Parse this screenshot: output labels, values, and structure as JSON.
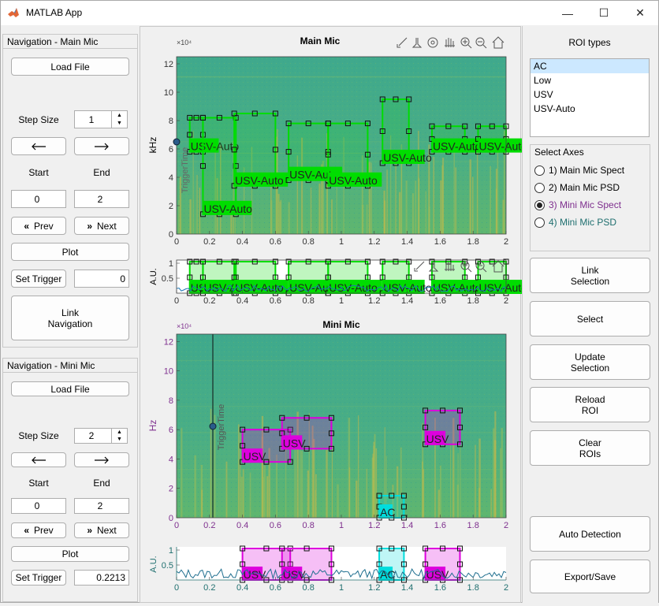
{
  "window": {
    "title": "MATLAB App",
    "minimize": "—",
    "maximize": "☐",
    "close": "✕"
  },
  "nav_main": {
    "title": "Navigation - Main Mic",
    "load_file": "Load File",
    "step_size_label": "Step Size",
    "step_size": "1",
    "start_label": "Start",
    "end_label": "End",
    "start": "0",
    "end": "2",
    "prev": "Prev",
    "next": "Next",
    "plot": "Plot",
    "set_trigger": "Set Trigger",
    "trigger": "0",
    "link_navigation": "Link Navigation"
  },
  "nav_mini": {
    "title": "Navigation - Mini Mic",
    "load_file": "Load File",
    "step_size_label": "Step Size",
    "step_size": "2",
    "start_label": "Start",
    "end_label": "End",
    "start": "0",
    "end": "2",
    "prev": "Prev",
    "next": "Next",
    "plot": "Plot",
    "set_trigger": "Set Trigger",
    "trigger": "0.2213"
  },
  "right_panel": {
    "roi_types_title": "ROI types",
    "roi_types": [
      "AC",
      "Low",
      "USV",
      "USV-Auto"
    ],
    "roi_selected_index": 0,
    "select_axes_title": "Select Axes",
    "axes_options": [
      {
        "label": "1) Main Mic Spect",
        "color": "#000000"
      },
      {
        "label": "2) Main Mic PSD",
        "color": "#000000"
      },
      {
        "label": "3) Mini Mic Spect",
        "color": "#7e2f8e"
      },
      {
        "label": "4) Mini Mic PSD",
        "color": "#1f6f6f"
      }
    ],
    "axes_selected_index": 2,
    "link_selection": "Link Selection",
    "select": "Select",
    "update_selection": "Update Selection",
    "reload_roi": "Reload ROI",
    "clear_rois": "Clear ROIs",
    "auto_detection": "Auto Detection",
    "export_save": "Export/Save"
  },
  "main_spect": {
    "title": "Main Mic",
    "exponent": "×10⁴",
    "ylabel": "kHz",
    "trigger_label": "TriggerTime",
    "x_ticks": [
      "0",
      "0.2",
      "0.4",
      "0.6",
      "0.8",
      "1",
      "1.2",
      "1.4",
      "1.6",
      "1.8",
      "2"
    ],
    "y_ticks": [
      "0",
      "2",
      "4",
      "6",
      "8",
      "10",
      "12"
    ],
    "roi_label": "USV-Auto",
    "roi_color": "#00dd00"
  },
  "main_psd": {
    "ylabel": "A.U.",
    "y_ticks": [
      "0.5",
      "1"
    ],
    "x_ticks": [
      "0",
      "0.2",
      "0.4",
      "0.6",
      "0.8",
      "1",
      "1.2",
      "1.4",
      "1.6",
      "1.8",
      "2"
    ],
    "roi_label": "USV-Auto"
  },
  "mini_spect": {
    "title": "Mini Mic",
    "exponent": "×10⁴",
    "ylabel": "Hz",
    "trigger_label": "TriggerTime",
    "x_ticks": [
      "0",
      "0.2",
      "0.4",
      "0.6",
      "0.8",
      "1",
      "1.2",
      "1.4",
      "1.6",
      "1.8",
      "2"
    ],
    "y_ticks": [
      "0",
      "2",
      "4",
      "6",
      "8",
      "10",
      "12"
    ],
    "usv_label": "USV",
    "ac_label": "AC",
    "usv_color": "#dd00dd",
    "ac_color": "#00dddd"
  },
  "mini_psd": {
    "ylabel": "A.U.",
    "y_ticks": [
      "0.5",
      "1"
    ],
    "x_ticks": [
      "0",
      "0.2",
      "0.4",
      "0.6",
      "0.8",
      "1",
      "1.2",
      "1.4",
      "1.6",
      "1.8",
      "2"
    ],
    "usv_label": "USV",
    "ac_label": "AC"
  },
  "rois": {
    "main": [
      {
        "x0": 0.08,
        "x1": 0.16,
        "y0": 5.8,
        "y1": 8.2
      },
      {
        "x0": 0.16,
        "x1": 0.36,
        "y0": 1.4,
        "y1": 8.2
      },
      {
        "x0": 0.35,
        "x1": 0.6,
        "y0": 3.4,
        "y1": 8.5
      },
      {
        "x0": 0.68,
        "x1": 0.92,
        "y0": 3.8,
        "y1": 7.8
      },
      {
        "x0": 0.92,
        "x1": 1.16,
        "y0": 3.4,
        "y1": 7.8
      },
      {
        "x0": 1.25,
        "x1": 1.41,
        "y0": 5.0,
        "y1": 9.5
      },
      {
        "x0": 1.55,
        "x1": 1.75,
        "y0": 5.8,
        "y1": 7.6
      },
      {
        "x0": 1.83,
        "x1": 2.0,
        "y0": 5.8,
        "y1": 7.6
      }
    ],
    "mini_usv": [
      {
        "x0": 0.4,
        "x1": 0.69,
        "y0": 3.8,
        "y1": 6.0
      },
      {
        "x0": 0.64,
        "x1": 0.94,
        "y0": 4.7,
        "y1": 6.8
      },
      {
        "x0": 1.51,
        "x1": 1.72,
        "y0": 5.0,
        "y1": 7.3
      }
    ],
    "mini_ac": [
      {
        "x0": 1.23,
        "x1": 1.38,
        "y0": 0.0,
        "y1": 1.5
      }
    ]
  }
}
